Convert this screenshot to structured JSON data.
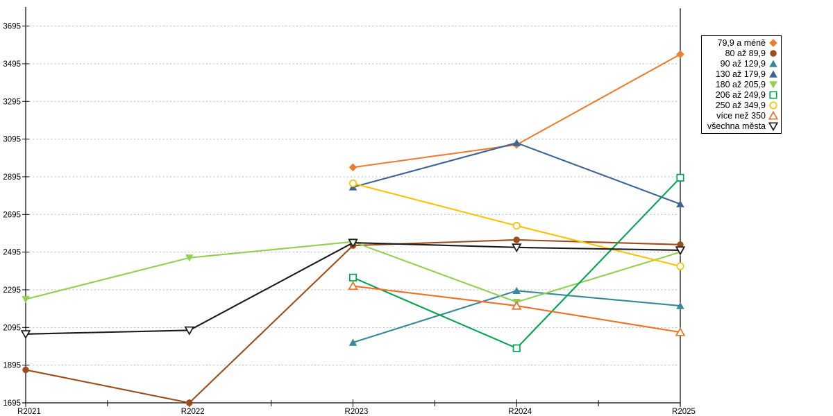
{
  "chart_data": {
    "type": "line",
    "title": "",
    "xlabel": "",
    "ylabel": "",
    "categories": [
      "R2021",
      "R2022",
      "R2023",
      "R2024",
      "R2025"
    ],
    "yticks": [
      1695,
      1895,
      2095,
      2295,
      2495,
      2695,
      2895,
      3095,
      3295,
      3495,
      3695
    ],
    "ylim": [
      1695,
      3795
    ],
    "grid": "horizontal dotted",
    "legend_position": "right-outside",
    "series": [
      {
        "name": "79,9 a méně",
        "marker": "diamond",
        "style": "filled",
        "color": "#ED7D31",
        "values": [
          null,
          null,
          2945,
          3065,
          3545
        ]
      },
      {
        "name": "80 až 89,9",
        "marker": "circle",
        "style": "filled",
        "color": "#9E4B19",
        "values": [
          1870,
          1695,
          2530,
          2560,
          2535
        ]
      },
      {
        "name": "90 až 129,9",
        "marker": "triangle-up",
        "style": "filled",
        "color": "#35889E",
        "values": [
          null,
          null,
          2015,
          2290,
          2210
        ]
      },
      {
        "name": "130 až 179,9",
        "marker": "triangle-up",
        "style": "filled",
        "color": "#3C6496",
        "values": [
          null,
          null,
          2840,
          3075,
          2750
        ]
      },
      {
        "name": "180 až 205,9",
        "marker": "triangle-down",
        "style": "filled",
        "color": "#92D050",
        "values": [
          2245,
          2465,
          2550,
          2230,
          2495
        ]
      },
      {
        "name": "206 až 249,9",
        "marker": "square",
        "style": "open",
        "color": "#00A550",
        "values": [
          null,
          null,
          2360,
          1985,
          2890
        ]
      },
      {
        "name": "250 až 349,9",
        "marker": "circle",
        "style": "open",
        "color": "#FFC000",
        "values": [
          null,
          null,
          2860,
          2635,
          2420
        ]
      },
      {
        "name": "více než 350",
        "marker": "triangle-up",
        "style": "open",
        "color": "#F06F22",
        "values": [
          null,
          null,
          2315,
          2210,
          2070
        ]
      },
      {
        "name": "všechna města",
        "marker": "triangle-down",
        "style": "open",
        "color": "#1A1A1A",
        "values": [
          2060,
          2080,
          2545,
          2520,
          2505
        ]
      }
    ]
  },
  "colors": {
    "axis": "#000000",
    "grid": "#B3B3B3",
    "tick_label": "#000000",
    "background": "#FFFFFF"
  }
}
